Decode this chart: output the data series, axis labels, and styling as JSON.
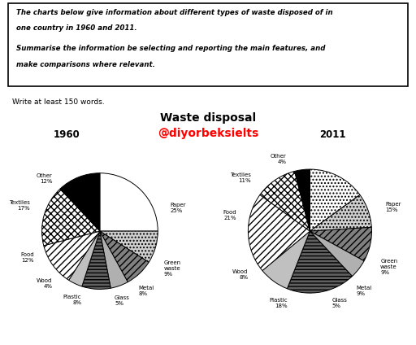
{
  "title": "Waste disposal",
  "watermark": "@diyorbeksielts",
  "watermark_color": "#FF0000",
  "box_text_line1": "The charts below give information about different types of waste disposed of in",
  "box_text_line2": "one country in 1960 and 2011.",
  "box_text_line3": "Summarise the information be selecting and reporting the main features, and",
  "box_text_line4": "make comparisons where relevant.",
  "write_text": "Write at least 150 words.",
  "year1": "1960",
  "year2": "2011",
  "values_1960": [
    25,
    9,
    8,
    5,
    8,
    4,
    12,
    17,
    12
  ],
  "values_2011": [
    15,
    9,
    9,
    5,
    18,
    8,
    21,
    11,
    4
  ],
  "colors_1960": [
    "white",
    "#d0d0d0",
    "#808080",
    "#b0b0b0",
    "#606060",
    "#c0c0c0",
    "white",
    "white",
    "black"
  ],
  "colors_2011": [
    "white",
    "#d0d0d0",
    "#808080",
    "#b0b0b0",
    "#606060",
    "#c0c0c0",
    "white",
    "white",
    "black"
  ],
  "hatch_1960": [
    "",
    "....",
    "////",
    "",
    "----",
    "",
    "////",
    "xxxx",
    ""
  ],
  "hatch_2011": [
    "....",
    "....",
    "////",
    "",
    "----",
    "",
    "////",
    "xxxx",
    ""
  ],
  "labels_1960": [
    [
      "Paper",
      "25%"
    ],
    [
      "Green\nwaste",
      "9%"
    ],
    [
      "Metal",
      "8%"
    ],
    [
      "Glass",
      "5%"
    ],
    [
      "Plastic",
      "8%"
    ],
    [
      "Wood",
      "4%"
    ],
    [
      "Food",
      "12%"
    ],
    [
      "Textiles",
      "17%"
    ],
    [
      "Other",
      "12%"
    ]
  ],
  "labels_2011": [
    [
      "Paper",
      "15%"
    ],
    [
      "Green\nwaste",
      "9%"
    ],
    [
      "Metal",
      "9%"
    ],
    [
      "Glass",
      "5%"
    ],
    [
      "Plastic",
      "18%"
    ],
    [
      "Wood",
      "8%"
    ],
    [
      "Food",
      "21%"
    ],
    [
      "Textiles",
      "11%"
    ],
    [
      "Other",
      "4%"
    ]
  ],
  "label_angles_1960": [
    18,
    -30,
    -57,
    -78,
    -105,
    -132,
    -158,
    160,
    132
  ],
  "label_angles_2011": [
    18,
    -27,
    -52,
    -73,
    -107,
    -145,
    168,
    138,
    108
  ],
  "label_r_1960": [
    1.28,
    1.28,
    1.22,
    1.22,
    1.22,
    1.22,
    1.22,
    1.28,
    1.22
  ],
  "label_r_2011": [
    1.28,
    1.28,
    1.22,
    1.22,
    1.22,
    1.22,
    1.22,
    1.28,
    1.22
  ]
}
